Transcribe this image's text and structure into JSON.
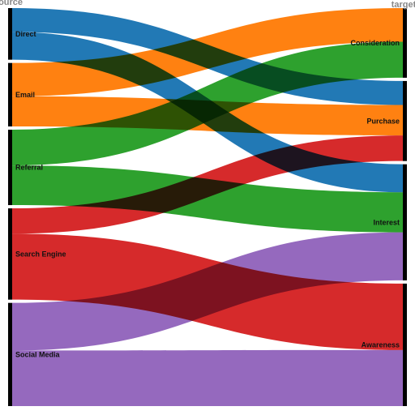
{
  "chart_data": {
    "type": "sankey",
    "column_titles": {
      "source": "source",
      "target": "target"
    },
    "sources": [
      {
        "name": "Direct",
        "color": "#1f77b4"
      },
      {
        "name": "Email",
        "color": "#ff7f0e"
      },
      {
        "name": "Referral",
        "color": "#2ca02c"
      },
      {
        "name": "Search Engine",
        "color": "#d62728"
      },
      {
        "name": "Social Media",
        "color": "#9467bd"
      }
    ],
    "targets": [
      {
        "name": "Consideration"
      },
      {
        "name": "Purchase"
      },
      {
        "name": "Interest"
      },
      {
        "name": "Awareness"
      }
    ],
    "links": [
      {
        "source": "Direct",
        "target": "Purchase",
        "value": 30
      },
      {
        "source": "Direct",
        "target": "Interest",
        "value": 35
      },
      {
        "source": "Email",
        "target": "Consideration",
        "value": 42
      },
      {
        "source": "Email",
        "target": "Purchase",
        "value": 38
      },
      {
        "source": "Referral",
        "target": "Consideration",
        "value": 45
      },
      {
        "source": "Referral",
        "target": "Interest",
        "value": 50
      },
      {
        "source": "Search Engine",
        "target": "Purchase",
        "value": 32
      },
      {
        "source": "Search Engine",
        "target": "Awareness",
        "value": 83
      },
      {
        "source": "Social Media",
        "target": "Interest",
        "value": 60
      },
      {
        "source": "Social Media",
        "target": "Awareness",
        "value": 70
      }
    ]
  }
}
